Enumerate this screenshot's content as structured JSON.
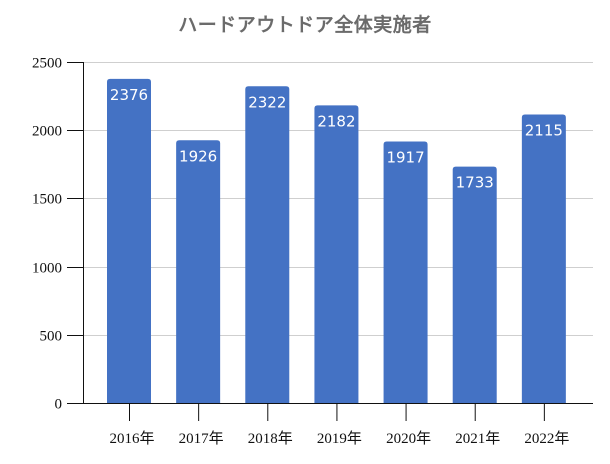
{
  "chart_data": {
    "type": "bar",
    "title": "ハードアウトドア全体実施者",
    "xlabel": "",
    "ylabel": "",
    "categories": [
      "2016年",
      "2017年",
      "2018年",
      "2019年",
      "2020年",
      "2021年",
      "2022年"
    ],
    "values": [
      2376,
      1926,
      2322,
      2182,
      1917,
      1733,
      2115
    ],
    "data_labels": [
      "2376",
      "1926",
      "2322",
      "2182",
      "1917",
      "1733",
      "2115"
    ],
    "ylim": [
      0,
      2500
    ],
    "yticks": [
      0,
      500,
      1000,
      1500,
      2000,
      2500
    ],
    "ytick_labels": [
      "0",
      "500",
      "1000",
      "1500",
      "2000",
      "2500"
    ],
    "grid": true,
    "legend": null,
    "bar_color": "#4472c4"
  }
}
